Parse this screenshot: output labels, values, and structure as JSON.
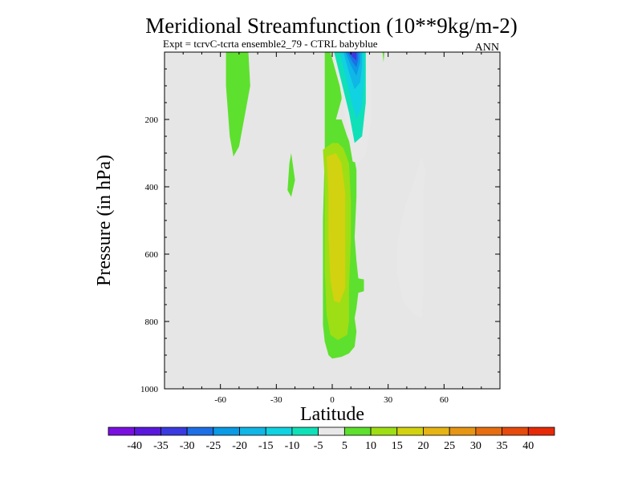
{
  "chart_data": {
    "type": "contour",
    "title": "Meridional Streamfunction (10**9kg/m-2)",
    "subtitle": "Expt = tcrvC-tcrta ensemble2_79 - CTRL babyblue",
    "season": "ANN",
    "xlabel": "Latitude",
    "ylabel": "Pressure (in hPa)",
    "xlim": [
      -90,
      90
    ],
    "ylim": [
      1000,
      0
    ],
    "x_ticks": [
      -60,
      -30,
      0,
      30,
      60
    ],
    "x_tick_labels": [
      "-60",
      "-30",
      "0",
      "30",
      "60"
    ],
    "y_ticks": [
      200,
      400,
      600,
      800,
      1000
    ],
    "y_tick_labels": [
      "200",
      "400",
      "600",
      "800",
      "1000"
    ],
    "background_color": "#e6e6e6",
    "colorbar": {
      "labels": [
        "-40",
        "-35",
        "-30",
        "-25",
        "-20",
        "-15",
        "-10",
        "-5",
        "5",
        "10",
        "15",
        "20",
        "25",
        "30",
        "35",
        "40"
      ],
      "colors": [
        "#7a10e0",
        "#5a18dc",
        "#3a3ae0",
        "#1e6ee6",
        "#0a9ae6",
        "#10b6e6",
        "#10d2e0",
        "#10e0b8",
        "#e8e8e8",
        "#5ee02e",
        "#9ede14",
        "#d2d210",
        "#e6b414",
        "#e69614",
        "#e66e10",
        "#e64a0c",
        "#e62a08"
      ]
    },
    "regions": [
      {
        "name": "nh-tropical-cell-weak",
        "level": 5,
        "points": [
          [
            -3,
            720
          ],
          [
            -3,
            670
          ],
          [
            -1,
            590
          ],
          [
            0,
            500
          ],
          [
            0,
            250
          ],
          [
            2,
            200
          ],
          [
            5,
            140
          ],
          [
            6,
            0
          ],
          [
            -4,
            0
          ],
          [
            -4,
            300
          ],
          [
            -5,
            500
          ],
          [
            -5,
            700
          ],
          [
            -5,
            810
          ],
          [
            -4,
            860
          ],
          [
            -2,
            900
          ],
          [
            0,
            910
          ],
          [
            5,
            905
          ],
          [
            9,
            895
          ],
          [
            12,
            875
          ],
          [
            13,
            830
          ],
          [
            12,
            790
          ],
          [
            13,
            760
          ],
          [
            14,
            715
          ],
          [
            17,
            710
          ],
          [
            17,
            675
          ],
          [
            14,
            672
          ],
          [
            13,
            620
          ],
          [
            12,
            550
          ],
          [
            13,
            430
          ],
          [
            13,
            350
          ],
          [
            11,
            290
          ],
          [
            8,
            250
          ],
          [
            5,
            200
          ],
          [
            -3,
            200
          ]
        ]
      },
      {
        "name": "nh-tropical-cell-moderate",
        "level": 10,
        "points": [
          [
            -5,
            290
          ],
          [
            -4,
            380
          ],
          [
            -4,
            500
          ],
          [
            -4,
            650
          ],
          [
            -3,
            780
          ],
          [
            -1,
            840
          ],
          [
            3,
            855
          ],
          [
            8,
            840
          ],
          [
            9,
            800
          ],
          [
            9,
            700
          ],
          [
            10,
            560
          ],
          [
            10,
            440
          ],
          [
            9,
            330
          ],
          [
            6,
            285
          ],
          [
            3,
            270
          ],
          [
            0,
            270
          ]
        ]
      },
      {
        "name": "nh-tropical-cell-strong",
        "level": 15,
        "points": [
          [
            -3,
            310
          ],
          [
            -2,
            420
          ],
          [
            -2,
            550
          ],
          [
            -1,
            680
          ],
          [
            1,
            740
          ],
          [
            4,
            745
          ],
          [
            7,
            700
          ],
          [
            7,
            560
          ],
          [
            7,
            420
          ],
          [
            5,
            330
          ],
          [
            2,
            300
          ]
        ]
      },
      {
        "name": "sh-midlat-strip",
        "level": 5,
        "points": [
          [
            -57,
            0
          ],
          [
            -57,
            100
          ],
          [
            -55,
            250
          ],
          [
            -53,
            310
          ],
          [
            -50,
            280
          ],
          [
            -47,
            190
          ],
          [
            -44,
            100
          ],
          [
            -45,
            0
          ]
        ]
      },
      {
        "name": "sh-small-patch",
        "level": 5,
        "points": [
          [
            -23,
            330
          ],
          [
            -24,
            410
          ],
          [
            -22,
            430
          ],
          [
            -20,
            380
          ],
          [
            -22,
            300
          ]
        ]
      },
      {
        "name": "upper-neg-cell-outer",
        "level": -5,
        "points": [
          [
            -1,
            0
          ],
          [
            4,
            100
          ],
          [
            8,
            230
          ],
          [
            11,
            325
          ],
          [
            14,
            330
          ],
          [
            18,
            305
          ],
          [
            21,
            200
          ],
          [
            21,
            100
          ],
          [
            20,
            0
          ]
        ]
      },
      {
        "name": "upper-neg-cell-l10",
        "level": -10,
        "points": [
          [
            1,
            0
          ],
          [
            5,
            90
          ],
          [
            9,
            180
          ],
          [
            12,
            270
          ],
          [
            16,
            250
          ],
          [
            18,
            150
          ],
          [
            18,
            0
          ]
        ]
      },
      {
        "name": "upper-neg-cell-l15",
        "level": -15,
        "points": [
          [
            4,
            0
          ],
          [
            7,
            70
          ],
          [
            10,
            140
          ],
          [
            13,
            200
          ],
          [
            16,
            160
          ],
          [
            17,
            80
          ],
          [
            17,
            0
          ]
        ]
      },
      {
        "name": "upper-neg-cell-l20",
        "level": -20,
        "points": [
          [
            6,
            0
          ],
          [
            9,
            60
          ],
          [
            12,
            110
          ],
          [
            15,
            90
          ],
          [
            16,
            40
          ],
          [
            16,
            0
          ]
        ]
      },
      {
        "name": "upper-neg-cell-l25",
        "level": -25,
        "points": [
          [
            7,
            0
          ],
          [
            10,
            40
          ],
          [
            13,
            70
          ],
          [
            15,
            30
          ],
          [
            15,
            0
          ]
        ]
      },
      {
        "name": "upper-neg-cell-l30",
        "level": -30,
        "points": [
          [
            8,
            0
          ],
          [
            11,
            30
          ],
          [
            13,
            45
          ],
          [
            14,
            20
          ],
          [
            14,
            0
          ]
        ]
      },
      {
        "name": "upper-neg-cell-l35",
        "level": -35,
        "points": [
          [
            9,
            0
          ],
          [
            11,
            15
          ],
          [
            13,
            25
          ],
          [
            13,
            0
          ]
        ]
      },
      {
        "name": "nh-midlat-neg",
        "level": -5,
        "points": [
          [
            48,
            310
          ],
          [
            44,
            380
          ],
          [
            39,
            460
          ],
          [
            35,
            560
          ],
          [
            35,
            660
          ],
          [
            38,
            740
          ],
          [
            44,
            780
          ],
          [
            48,
            790
          ],
          [
            49,
            710
          ],
          [
            49,
            560
          ],
          [
            49,
            420
          ],
          [
            50,
            350
          ]
        ]
      },
      {
        "name": "upper-sliver",
        "level": 5,
        "points": [
          [
            27,
            0
          ],
          [
            27.5,
            30
          ],
          [
            28,
            0
          ]
        ]
      }
    ]
  }
}
